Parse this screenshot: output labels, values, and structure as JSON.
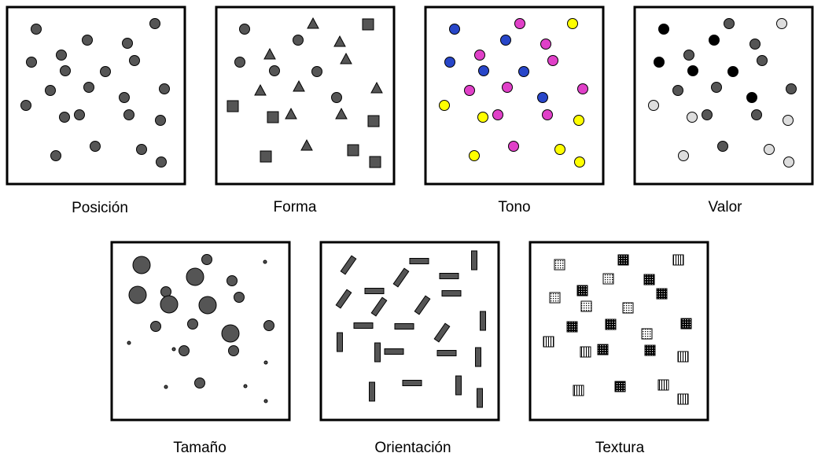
{
  "panels": [
    {
      "id": "posicion",
      "label": "Posición"
    },
    {
      "id": "forma",
      "label": "Forma"
    },
    {
      "id": "tono",
      "label": "Tono"
    },
    {
      "id": "valor",
      "label": "Valor"
    },
    {
      "id": "tamano",
      "label": "Tamaño"
    },
    {
      "id": "orientacion",
      "label": "Orientación"
    },
    {
      "id": "textura",
      "label": "Textura"
    }
  ],
  "colors": {
    "mark_gray": "#555555",
    "outline": "#000000",
    "tone_blue": "#2846c8",
    "tone_magenta": "#e040c8",
    "tone_yellow": "#ffff00",
    "value_black": "#000000",
    "value_light": "#dddddd"
  }
}
